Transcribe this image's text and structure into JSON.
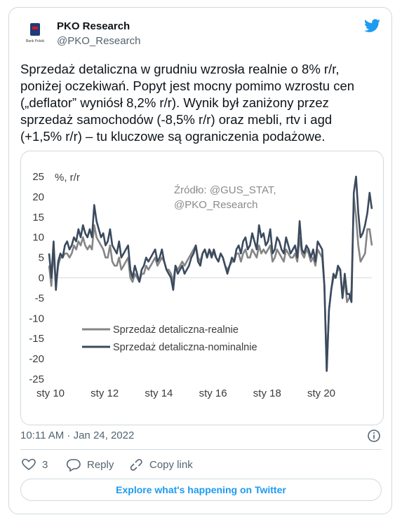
{
  "tweet": {
    "name": "PKO Research",
    "handle": "@PKO_Research",
    "avatar_text": "Bank Polski",
    "text_lines": [
      "Sprzedaż detaliczna w grudniu wzrosła realnie o 8% r/r,",
      "poniżej oczekiwań. Popyt jest mocny pomimo wzrostu cen",
      "(„deflator” wyniósł 8,2% r/r). Wynik był zaniżony przez",
      "sprzedaż samochodów (-8,5% r/r) oraz mebli, rtv i agd",
      "(+1,5% r/r) – tu kluczowe są ograniczenia podażowe."
    ],
    "timestamp": "10:11 AM · Jan 24, 2022",
    "likes": "3",
    "reply": "Reply",
    "copy_link": "Copy link",
    "explore": "Explore what's happening on Twitter"
  },
  "chart_data": {
    "type": "line",
    "y_label": "%, r/r",
    "annotation": [
      "Źródło: @GUS_STAT,",
      "@PKO_Research"
    ],
    "categories": [
      "sty 10",
      null,
      null,
      null,
      null,
      null,
      null,
      null,
      null,
      null,
      null,
      null,
      null,
      null,
      null,
      null,
      null,
      null,
      null,
      null,
      null,
      null,
      null,
      null,
      "sty 12",
      null,
      null,
      null,
      null,
      null,
      null,
      null,
      null,
      null,
      null,
      null,
      null,
      null,
      null,
      null,
      null,
      null,
      null,
      null,
      null,
      null,
      null,
      null,
      "sty 14",
      null,
      null,
      null,
      null,
      null,
      null,
      null,
      null,
      null,
      null,
      null,
      null,
      null,
      null,
      null,
      null,
      null,
      null,
      null,
      null,
      null,
      null,
      null,
      "sty 16",
      null,
      null,
      null,
      null,
      null,
      null,
      null,
      null,
      null,
      null,
      null,
      null,
      null,
      null,
      null,
      null,
      null,
      null,
      null,
      null,
      null,
      null,
      null,
      "sty 18",
      null,
      null,
      null,
      null,
      null,
      null,
      null,
      null,
      null,
      null,
      null,
      null,
      null,
      null,
      null,
      null,
      null,
      null,
      null,
      null,
      null,
      null,
      null,
      "sty 20",
      null,
      null,
      null,
      null,
      null,
      null,
      null,
      null,
      null,
      null,
      null,
      null,
      null,
      null,
      null,
      null,
      null,
      null,
      null,
      null,
      null,
      null,
      null
    ],
    "series": [
      {
        "name": "Sprzedaż detaliczna-realnie",
        "color": "#858585",
        "values": [
          3,
          -2,
          7,
          -2,
          3,
          5,
          5,
          6,
          6,
          5,
          6,
          8,
          7,
          9,
          8,
          10,
          8,
          7,
          8,
          7,
          13,
          10,
          9,
          8,
          7,
          5,
          5,
          8,
          4,
          3,
          3,
          5,
          2,
          3,
          4,
          5,
          0,
          -1,
          1,
          0,
          -1,
          1,
          1,
          3,
          2,
          3,
          4,
          5,
          3,
          4,
          5,
          4,
          2,
          2,
          1,
          -1,
          3,
          2,
          3,
          4,
          3,
          4,
          5,
          6,
          7,
          8,
          5,
          4,
          6,
          7,
          5,
          7,
          6,
          6,
          5,
          4,
          6,
          5,
          3,
          2,
          3,
          4,
          4,
          6,
          6,
          4,
          6,
          7,
          5,
          5,
          7,
          6,
          5,
          8,
          6,
          7,
          6,
          7,
          8,
          4,
          5,
          7,
          6,
          5,
          4,
          7,
          6,
          5,
          5,
          6,
          4,
          10,
          6,
          5,
          7,
          6,
          4,
          5,
          3,
          7,
          6,
          5,
          -2,
          -23,
          -8,
          -3,
          0,
          0,
          2,
          2,
          -5,
          0,
          -6,
          -5,
          -3,
          20,
          15,
          8,
          4,
          5,
          6,
          12,
          12,
          8
        ]
      },
      {
        "name": "Sprzedaż detaliczna-nominalnie",
        "color": "#3b4a5e",
        "values": [
          6,
          0,
          9,
          -3,
          4,
          6,
          5,
          8,
          9,
          7,
          8,
          10,
          9,
          12,
          10,
          13,
          11,
          10,
          12,
          10,
          18,
          14,
          12,
          10,
          11,
          8,
          9,
          12,
          8,
          7,
          6,
          9,
          5,
          6,
          7,
          8,
          2,
          0,
          3,
          1,
          -1,
          2,
          3,
          5,
          4,
          5,
          6,
          7,
          4,
          5,
          7,
          4,
          2,
          1,
          0,
          -3,
          3,
          1,
          2,
          3,
          1,
          2,
          3,
          5,
          6,
          8,
          4,
          3,
          6,
          7,
          5,
          7,
          5,
          7,
          5,
          4,
          6,
          5,
          3,
          1,
          3,
          5,
          4,
          7,
          8,
          6,
          9,
          10,
          7,
          8,
          11,
          9,
          7,
          13,
          10,
          11,
          8,
          9,
          12,
          6,
          7,
          10,
          9,
          7,
          6,
          10,
          8,
          6,
          7,
          8,
          5,
          14,
          7,
          6,
          8,
          7,
          5,
          7,
          4,
          9,
          8,
          7,
          -2,
          -23,
          -8,
          -3,
          1,
          0,
          3,
          2,
          -5,
          1,
          -4,
          -4,
          -6,
          21,
          25,
          16,
          10,
          11,
          13,
          16,
          21,
          17
        ]
      }
    ],
    "ylim": [
      -25,
      25
    ],
    "yticks": [
      -25,
      -20,
      -15,
      -10,
      -5,
      0,
      5,
      10,
      15,
      20,
      25
    ],
    "grid": false,
    "legend": "lower-left"
  }
}
